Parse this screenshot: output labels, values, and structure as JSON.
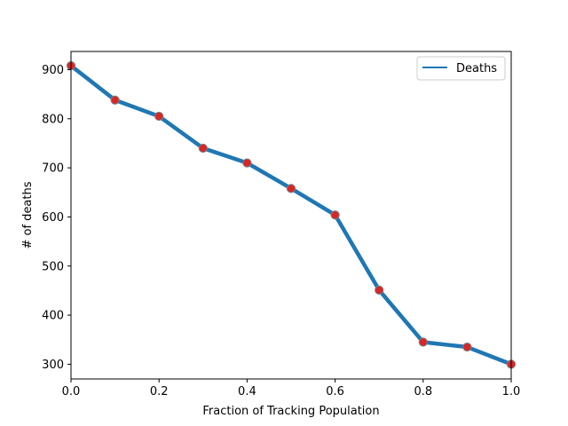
{
  "chart_data": {
    "type": "line",
    "title": "",
    "xlabel": "Fraction of Tracking Population",
    "ylabel": "# of deaths",
    "xlim": [
      0.0,
      1.0
    ],
    "ylim": [
      270,
      937
    ],
    "x_ticks": [
      0.0,
      0.2,
      0.4,
      0.6,
      0.8,
      1.0
    ],
    "x_tick_labels": [
      "0.0",
      "0.2",
      "0.4",
      "0.6",
      "0.8",
      "1.0"
    ],
    "y_ticks": [
      300,
      400,
      500,
      600,
      700,
      800,
      900
    ],
    "y_tick_labels": [
      "300",
      "400",
      "500",
      "600",
      "700",
      "800",
      "900"
    ],
    "grid": false,
    "legend_position": "top-right",
    "series": [
      {
        "name": "Deaths",
        "color": "#1f77b4",
        "marker_color": "#d62728",
        "x": [
          0.0,
          0.1,
          0.2,
          0.3,
          0.4,
          0.5,
          0.6,
          0.7,
          0.8,
          0.9,
          1.0
        ],
        "y": [
          908,
          838,
          805,
          740,
          710,
          658,
          604,
          451,
          345,
          335,
          300
        ]
      }
    ]
  }
}
